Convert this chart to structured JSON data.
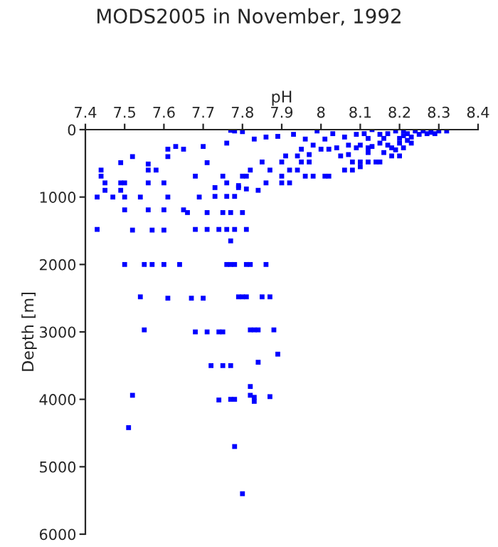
{
  "chart_data": {
    "type": "scatter",
    "title": "MODS2005 in November, 1992",
    "xlabel": "pH",
    "ylabel": "Depth [m]",
    "xlim": [
      7.4,
      8.4
    ],
    "xticks": [
      7.4,
      7.5,
      7.6,
      7.7,
      7.8,
      7.9,
      8,
      8.1,
      8.2,
      8.3,
      8.4
    ],
    "ylim": [
      6000,
      0
    ],
    "yticks": [
      0,
      1000,
      2000,
      3000,
      4000,
      5000,
      6000
    ],
    "marker": "square",
    "grid": false,
    "legend": false,
    "series": [
      {
        "color": "#0000ff",
        "x": [
          7.5,
          7.55,
          7.57,
          7.6,
          7.64,
          7.76,
          7.77,
          7.78,
          7.81,
          7.82,
          7.86,
          7.54,
          7.61,
          7.67,
          7.7,
          7.79,
          7.8,
          7.81,
          7.85,
          7.87,
          7.55,
          7.68,
          7.71,
          7.74,
          7.75,
          7.82,
          7.83,
          7.84,
          7.88,
          7.89,
          7.84,
          7.72,
          7.75,
          7.77,
          7.82,
          7.82,
          7.83,
          7.87,
          7.83,
          7.74,
          7.77,
          7.78,
          7.52,
          7.51,
          7.78,
          7.8,
          7.77,
          7.78,
          7.8,
          7.83,
          7.86,
          7.89,
          7.93,
          7.96,
          7.99,
          7.63,
          7.61,
          7.65,
          7.7,
          7.61,
          7.52,
          7.76,
          7.71,
          7.49,
          7.56,
          7.58,
          7.56,
          7.44,
          7.44,
          7.45,
          7.45,
          7.43,
          7.47,
          7.49,
          7.49,
          7.5,
          7.5,
          7.54,
          7.56,
          7.6,
          7.61,
          7.68,
          7.69,
          7.65,
          7.66,
          7.6,
          7.56,
          7.5,
          7.71,
          7.43,
          7.52,
          7.57,
          7.6,
          7.68,
          7.71,
          7.74,
          7.76,
          7.78,
          7.81,
          7.75,
          7.77,
          7.8,
          7.77,
          7.73,
          7.76,
          7.78,
          7.73,
          7.75,
          7.76,
          7.79,
          7.8,
          7.81,
          7.79,
          7.81,
          7.84,
          7.82,
          7.85,
          7.87,
          7.86,
          7.9,
          7.9,
          7.92,
          7.91,
          7.94,
          7.9,
          7.95,
          7.97,
          7.96,
          7.98,
          8.01,
          8.02,
          7.92,
          7.94,
          7.97,
          7.98,
          7.95,
          8.01,
          8.03,
          8.06,
          8.09,
          8.04,
          8.07,
          8.05,
          8.02,
          8.0,
          8.09,
          8.1,
          8.08,
          8.06,
          8.08,
          8.1,
          8.12,
          8.14,
          8.15,
          8.12,
          8.16,
          8.18,
          8.2,
          8.18,
          8.2,
          8.21,
          8.23,
          8.23,
          8.24,
          8.26,
          8.28,
          8.3,
          8.32,
          8.25,
          8.21,
          8.19,
          8.17,
          8.15,
          8.13,
          8.11,
          8.12,
          8.15,
          8.16,
          8.1,
          8.07,
          8.13,
          8.2,
          8.22,
          8.17,
          8.19,
          8.12,
          8.22,
          8.27,
          8.29,
          8.21
        ],
        "values": [
          2000,
          2000,
          2000,
          2000,
          2000,
          2000,
          2000,
          2000,
          2000,
          2000,
          2000,
          2480,
          2500,
          2500,
          2500,
          2480,
          2480,
          2480,
          2480,
          2480,
          2970,
          3000,
          3000,
          3000,
          3000,
          2970,
          2970,
          2970,
          2970,
          3330,
          3450,
          3500,
          3500,
          3500,
          3810,
          3940,
          3970,
          3960,
          4030,
          4010,
          4000,
          4000,
          3940,
          4420,
          4700,
          5400,
          10,
          20,
          30,
          140,
          110,
          100,
          70,
          140,
          20,
          250,
          290,
          290,
          250,
          400,
          400,
          200,
          490,
          490,
          510,
          600,
          600,
          600,
          690,
          790,
          900,
          1000,
          1000,
          900,
          790,
          790,
          1000,
          1000,
          790,
          790,
          1000,
          690,
          1000,
          1190,
          1230,
          1190,
          1190,
          1190,
          1230,
          1480,
          1490,
          1490,
          1490,
          1480,
          1480,
          1480,
          1480,
          1480,
          1480,
          1230,
          1230,
          1230,
          1650,
          990,
          990,
          990,
          860,
          690,
          790,
          830,
          690,
          690,
          860,
          880,
          900,
          600,
          480,
          600,
          790,
          690,
          790,
          790,
          390,
          390,
          480,
          480,
          480,
          690,
          690,
          690,
          690,
          600,
          600,
          370,
          230,
          290,
          140,
          60,
          110,
          70,
          270,
          370,
          390,
          290,
          290,
          270,
          480,
          480,
          600,
          600,
          550,
          480,
          480,
          480,
          340,
          340,
          390,
          390,
          270,
          200,
          270,
          200,
          110,
          20,
          20,
          40,
          20,
          20,
          70,
          20,
          20,
          60,
          70,
          0,
          60,
          130,
          200,
          130,
          230,
          230,
          250,
          130,
          160,
          230,
          300,
          270,
          60,
          60,
          60,
          90
        ]
      }
    ]
  }
}
